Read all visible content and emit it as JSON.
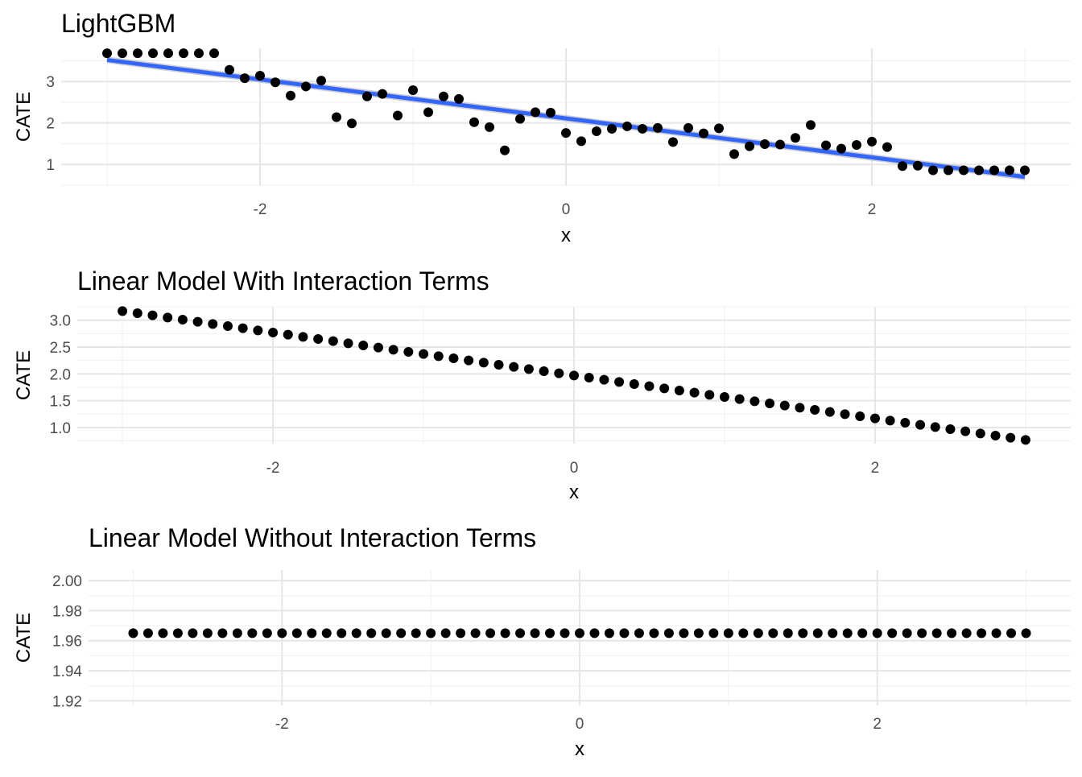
{
  "chart_data": [
    {
      "type": "scatter",
      "title": "LightGBM",
      "xlabel": "x",
      "ylabel": "CATE",
      "xlim": [
        -3,
        3
      ],
      "ylim": [
        0.5,
        3.8
      ],
      "grid": true,
      "x_ticks": [
        -2,
        0,
        2
      ],
      "y_ticks": [
        1,
        2,
        3
      ],
      "x_tick_labels": [
        "-2",
        "0",
        "2"
      ],
      "y_tick_labels": [
        "1",
        "2",
        "3"
      ],
      "x": [
        -3.0,
        -2.9,
        -2.8,
        -2.7,
        -2.6,
        -2.5,
        -2.4,
        -2.3,
        -2.2,
        -2.1,
        -2.0,
        -1.9,
        -1.8,
        -1.7,
        -1.6,
        -1.5,
        -1.4,
        -1.3,
        -1.2,
        -1.1,
        -1.0,
        -0.9,
        -0.8,
        -0.7,
        -0.6,
        -0.5,
        -0.4,
        -0.3,
        -0.2,
        -0.1,
        0.0,
        0.1,
        0.2,
        0.3,
        0.4,
        0.5,
        0.6,
        0.7,
        0.8,
        0.9,
        1.0,
        1.1,
        1.2,
        1.3,
        1.4,
        1.5,
        1.6,
        1.7,
        1.8,
        1.9,
        2.0,
        2.1,
        2.2,
        2.3,
        2.4,
        2.5,
        2.6,
        2.7,
        2.8,
        2.9,
        3.0
      ],
      "y": [
        3.68,
        3.68,
        3.68,
        3.68,
        3.68,
        3.68,
        3.68,
        3.68,
        3.28,
        3.08,
        3.14,
        2.98,
        2.66,
        2.88,
        3.02,
        2.14,
        1.99,
        2.64,
        2.7,
        2.18,
        2.79,
        2.26,
        2.64,
        2.58,
        2.02,
        1.9,
        1.34,
        2.1,
        2.26,
        2.25,
        1.76,
        1.56,
        1.8,
        1.86,
        1.92,
        1.86,
        1.88,
        1.54,
        1.88,
        1.75,
        1.87,
        1.25,
        1.44,
        1.49,
        1.48,
        1.64,
        1.95,
        1.46,
        1.38,
        1.47,
        1.55,
        1.42,
        0.96,
        0.97,
        0.86,
        0.86,
        0.86,
        0.86,
        0.86,
        0.86,
        0.86
      ],
      "smooth": {
        "method": "linear",
        "x": [
          -3,
          3
        ],
        "y": [
          3.52,
          0.7
        ],
        "band": 0.08,
        "color": "#3366ff",
        "band_color": "#bdbdbd"
      }
    },
    {
      "type": "scatter",
      "title": "Linear Model With Interaction Terms",
      "xlabel": "x",
      "ylabel": "CATE",
      "xlim": [
        -3,
        3
      ],
      "ylim": [
        0.7,
        3.25
      ],
      "grid": true,
      "x_ticks": [
        -2,
        0,
        2
      ],
      "y_ticks": [
        1.0,
        1.5,
        2.0,
        2.5,
        3.0
      ],
      "x_tick_labels": [
        "-2",
        "0",
        "2"
      ],
      "y_tick_labels": [
        "1.0",
        "1.5",
        "2.0",
        "2.5",
        "3.0"
      ],
      "x": [
        -3.0,
        -2.9,
        -2.8,
        -2.7,
        -2.6,
        -2.5,
        -2.4,
        -2.3,
        -2.2,
        -2.1,
        -2.0,
        -1.9,
        -1.8,
        -1.7,
        -1.6,
        -1.5,
        -1.4,
        -1.3,
        -1.2,
        -1.1,
        -1.0,
        -0.9,
        -0.8,
        -0.7,
        -0.6,
        -0.5,
        -0.4,
        -0.3,
        -0.2,
        -0.1,
        0.0,
        0.1,
        0.2,
        0.3,
        0.4,
        0.5,
        0.6,
        0.7,
        0.8,
        0.9,
        1.0,
        1.1,
        1.2,
        1.3,
        1.4,
        1.5,
        1.6,
        1.7,
        1.8,
        1.9,
        2.0,
        2.1,
        2.2,
        2.3,
        2.4,
        2.5,
        2.6,
        2.7,
        2.8,
        2.9,
        3.0
      ],
      "y": [
        3.17,
        3.13,
        3.09,
        3.05,
        3.01,
        2.97,
        2.93,
        2.89,
        2.85,
        2.81,
        2.77,
        2.73,
        2.69,
        2.65,
        2.61,
        2.57,
        2.53,
        2.49,
        2.45,
        2.41,
        2.37,
        2.33,
        2.29,
        2.25,
        2.21,
        2.17,
        2.13,
        2.09,
        2.05,
        2.01,
        1.97,
        1.93,
        1.89,
        1.85,
        1.81,
        1.77,
        1.73,
        1.69,
        1.65,
        1.61,
        1.57,
        1.53,
        1.49,
        1.45,
        1.41,
        1.37,
        1.33,
        1.29,
        1.25,
        1.21,
        1.17,
        1.13,
        1.09,
        1.05,
        1.01,
        0.97,
        0.93,
        0.89,
        0.85,
        0.81,
        0.77
      ]
    },
    {
      "type": "scatter",
      "title": "Linear Model Without Interaction Terms",
      "xlabel": "x",
      "ylabel": "CATE",
      "xlim": [
        -3,
        3
      ],
      "ylim": [
        1.917,
        2.007
      ],
      "grid": true,
      "x_ticks": [
        -2,
        0,
        2
      ],
      "y_ticks": [
        1.92,
        1.94,
        1.96,
        1.98,
        2.0
      ],
      "x_tick_labels": [
        "-2",
        "0",
        "2"
      ],
      "y_tick_labels": [
        "1.92",
        "1.94",
        "1.96",
        "1.98",
        "2.00"
      ],
      "x": [
        -3.0,
        -2.9,
        -2.8,
        -2.7,
        -2.6,
        -2.5,
        -2.4,
        -2.3,
        -2.2,
        -2.1,
        -2.0,
        -1.9,
        -1.8,
        -1.7,
        -1.6,
        -1.5,
        -1.4,
        -1.3,
        -1.2,
        -1.1,
        -1.0,
        -0.9,
        -0.8,
        -0.7,
        -0.6,
        -0.5,
        -0.4,
        -0.3,
        -0.2,
        -0.1,
        0.0,
        0.1,
        0.2,
        0.3,
        0.4,
        0.5,
        0.6,
        0.7,
        0.8,
        0.9,
        1.0,
        1.1,
        1.2,
        1.3,
        1.4,
        1.5,
        1.6,
        1.7,
        1.8,
        1.9,
        2.0,
        2.1,
        2.2,
        2.3,
        2.4,
        2.5,
        2.6,
        2.7,
        2.8,
        2.9,
        3.0
      ],
      "y": [
        1.965,
        1.965,
        1.965,
        1.965,
        1.965,
        1.965,
        1.965,
        1.965,
        1.965,
        1.965,
        1.965,
        1.965,
        1.965,
        1.965,
        1.965,
        1.965,
        1.965,
        1.965,
        1.965,
        1.965,
        1.965,
        1.965,
        1.965,
        1.965,
        1.965,
        1.965,
        1.965,
        1.965,
        1.965,
        1.965,
        1.965,
        1.965,
        1.965,
        1.965,
        1.965,
        1.965,
        1.965,
        1.965,
        1.965,
        1.965,
        1.965,
        1.965,
        1.965,
        1.965,
        1.965,
        1.965,
        1.965,
        1.965,
        1.965,
        1.965,
        1.965,
        1.965,
        1.965,
        1.965,
        1.965,
        1.965,
        1.965,
        1.965,
        1.965,
        1.965,
        1.965
      ]
    }
  ]
}
